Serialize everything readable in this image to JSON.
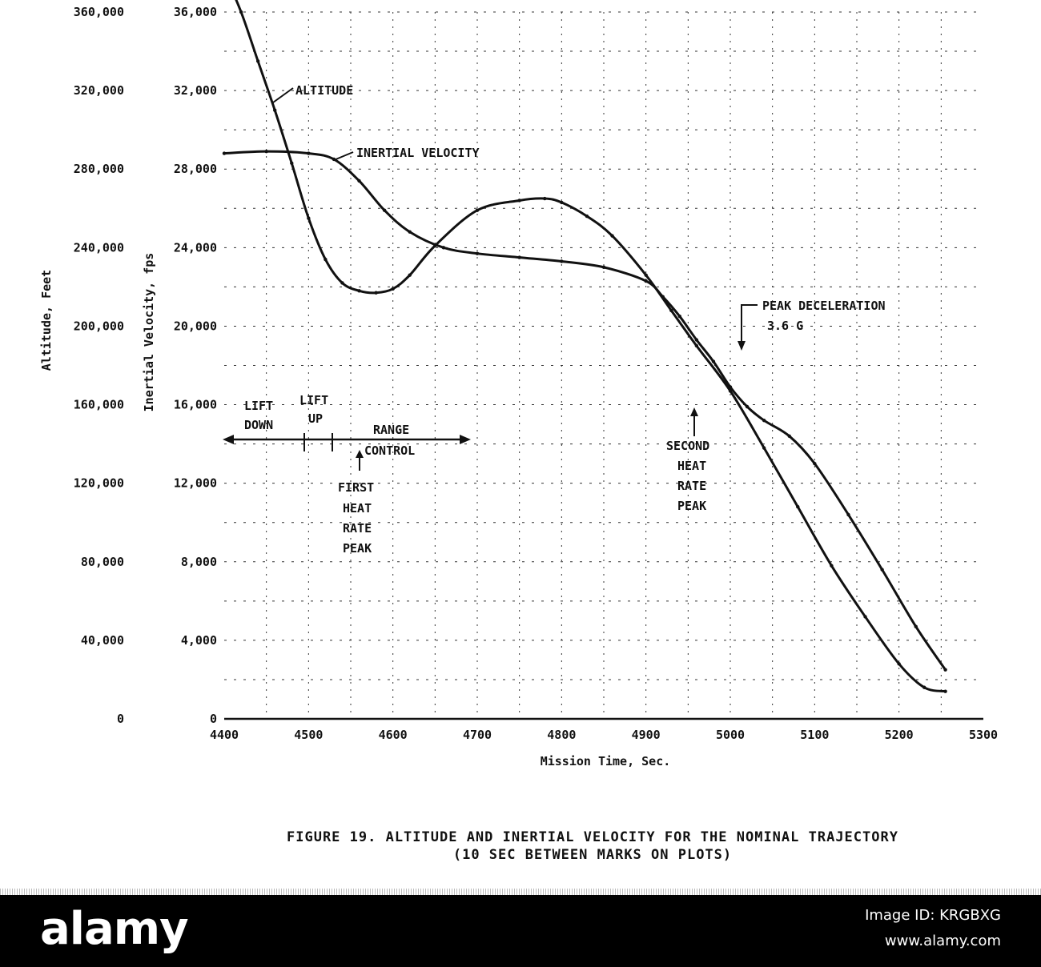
{
  "chart_data": {
    "type": "line",
    "xlabel": "Mission Time, Sec.",
    "ylabel_left": "Altitude, Feet",
    "ylabel_right": "Inertial Velocity, fps",
    "x_ticks": [
      "4400",
      "4500",
      "4600",
      "4700",
      "4800",
      "4900",
      "5000",
      "5100",
      "5200",
      "5300"
    ],
    "altitude_ticks": [
      "0",
      "40,000",
      "80,000",
      "120,000",
      "160,000",
      "200,000",
      "240,000",
      "280,000",
      "320,000",
      "360,000"
    ],
    "velocity_ticks": [
      "0",
      "4,000",
      "8,000",
      "12,000",
      "16,000",
      "20,000",
      "24,000",
      "28,000",
      "32,000",
      "36,000"
    ],
    "xlim": [
      4400,
      5300
    ],
    "ylim_velocity": [
      0,
      36000
    ],
    "ylim_altitude": [
      0,
      360000
    ],
    "grid": true,
    "series": [
      {
        "name": "ALTITUDE",
        "axis": "altitude",
        "x": [
          4400,
          4420,
          4440,
          4460,
          4480,
          4500,
          4520,
          4540,
          4560,
          4580,
          4600,
          4620,
          4650,
          4700,
          4750,
          4780,
          4800,
          4830,
          4860,
          4900,
          4930,
          4960,
          5000,
          5040,
          5080,
          5120,
          5160,
          5200,
          5230,
          5255
        ],
        "y": [
          380000,
          360000,
          335000,
          310000,
          283000,
          255000,
          234000,
          222000,
          218000,
          217000,
          219000,
          226000,
          241000,
          259000,
          264000,
          265000,
          263000,
          256000,
          246000,
          226000,
          208000,
          190000,
          167000,
          138000,
          108000,
          78000,
          52000,
          28000,
          16000,
          14000
        ]
      },
      {
        "name": "INERTIAL VELOCITY",
        "axis": "velocity",
        "x": [
          4400,
          4450,
          4500,
          4530,
          4560,
          4590,
          4620,
          4660,
          4700,
          4750,
          4800,
          4850,
          4900,
          4920,
          4940,
          4960,
          4980,
          5000,
          5020,
          5040,
          5070,
          5100,
          5140,
          5180,
          5220,
          5255
        ],
        "y": [
          28800,
          28900,
          28800,
          28500,
          27400,
          25900,
          24800,
          24000,
          23700,
          23500,
          23300,
          23000,
          22300,
          21500,
          20500,
          19300,
          18200,
          16900,
          15900,
          15200,
          14400,
          13000,
          10400,
          7600,
          4700,
          2500
        ]
      }
    ],
    "annotations": {
      "altitude_label": "ALTITUDE",
      "velocity_label": "INERTIAL VELOCITY",
      "peak_decel": "PEAK DECELERATION",
      "peak_decel_g": "3.6 G",
      "lift_down_1": "LIFT",
      "lift_down_2": "DOWN",
      "lift_up_1": "LIFT",
      "lift_up_2": "UP",
      "range_1": "RANGE",
      "range_2": "CONTROL",
      "first_peak": [
        "FIRST",
        "HEAT",
        "RATE",
        "PEAK"
      ],
      "second_peak": [
        "SECOND",
        "HEAT",
        "RATE",
        "PEAK"
      ]
    }
  },
  "caption": {
    "line1": "FIGURE 19.  ALTITUDE AND INERTIAL VELOCITY FOR THE NOMINAL TRAJECTORY",
    "line2": "(10 SEC BETWEEN MARKS ON PLOTS)"
  },
  "watermark": {
    "brand": "alamy",
    "image_id": "Image ID: KRGBXG",
    "url": "www.alamy.com"
  }
}
